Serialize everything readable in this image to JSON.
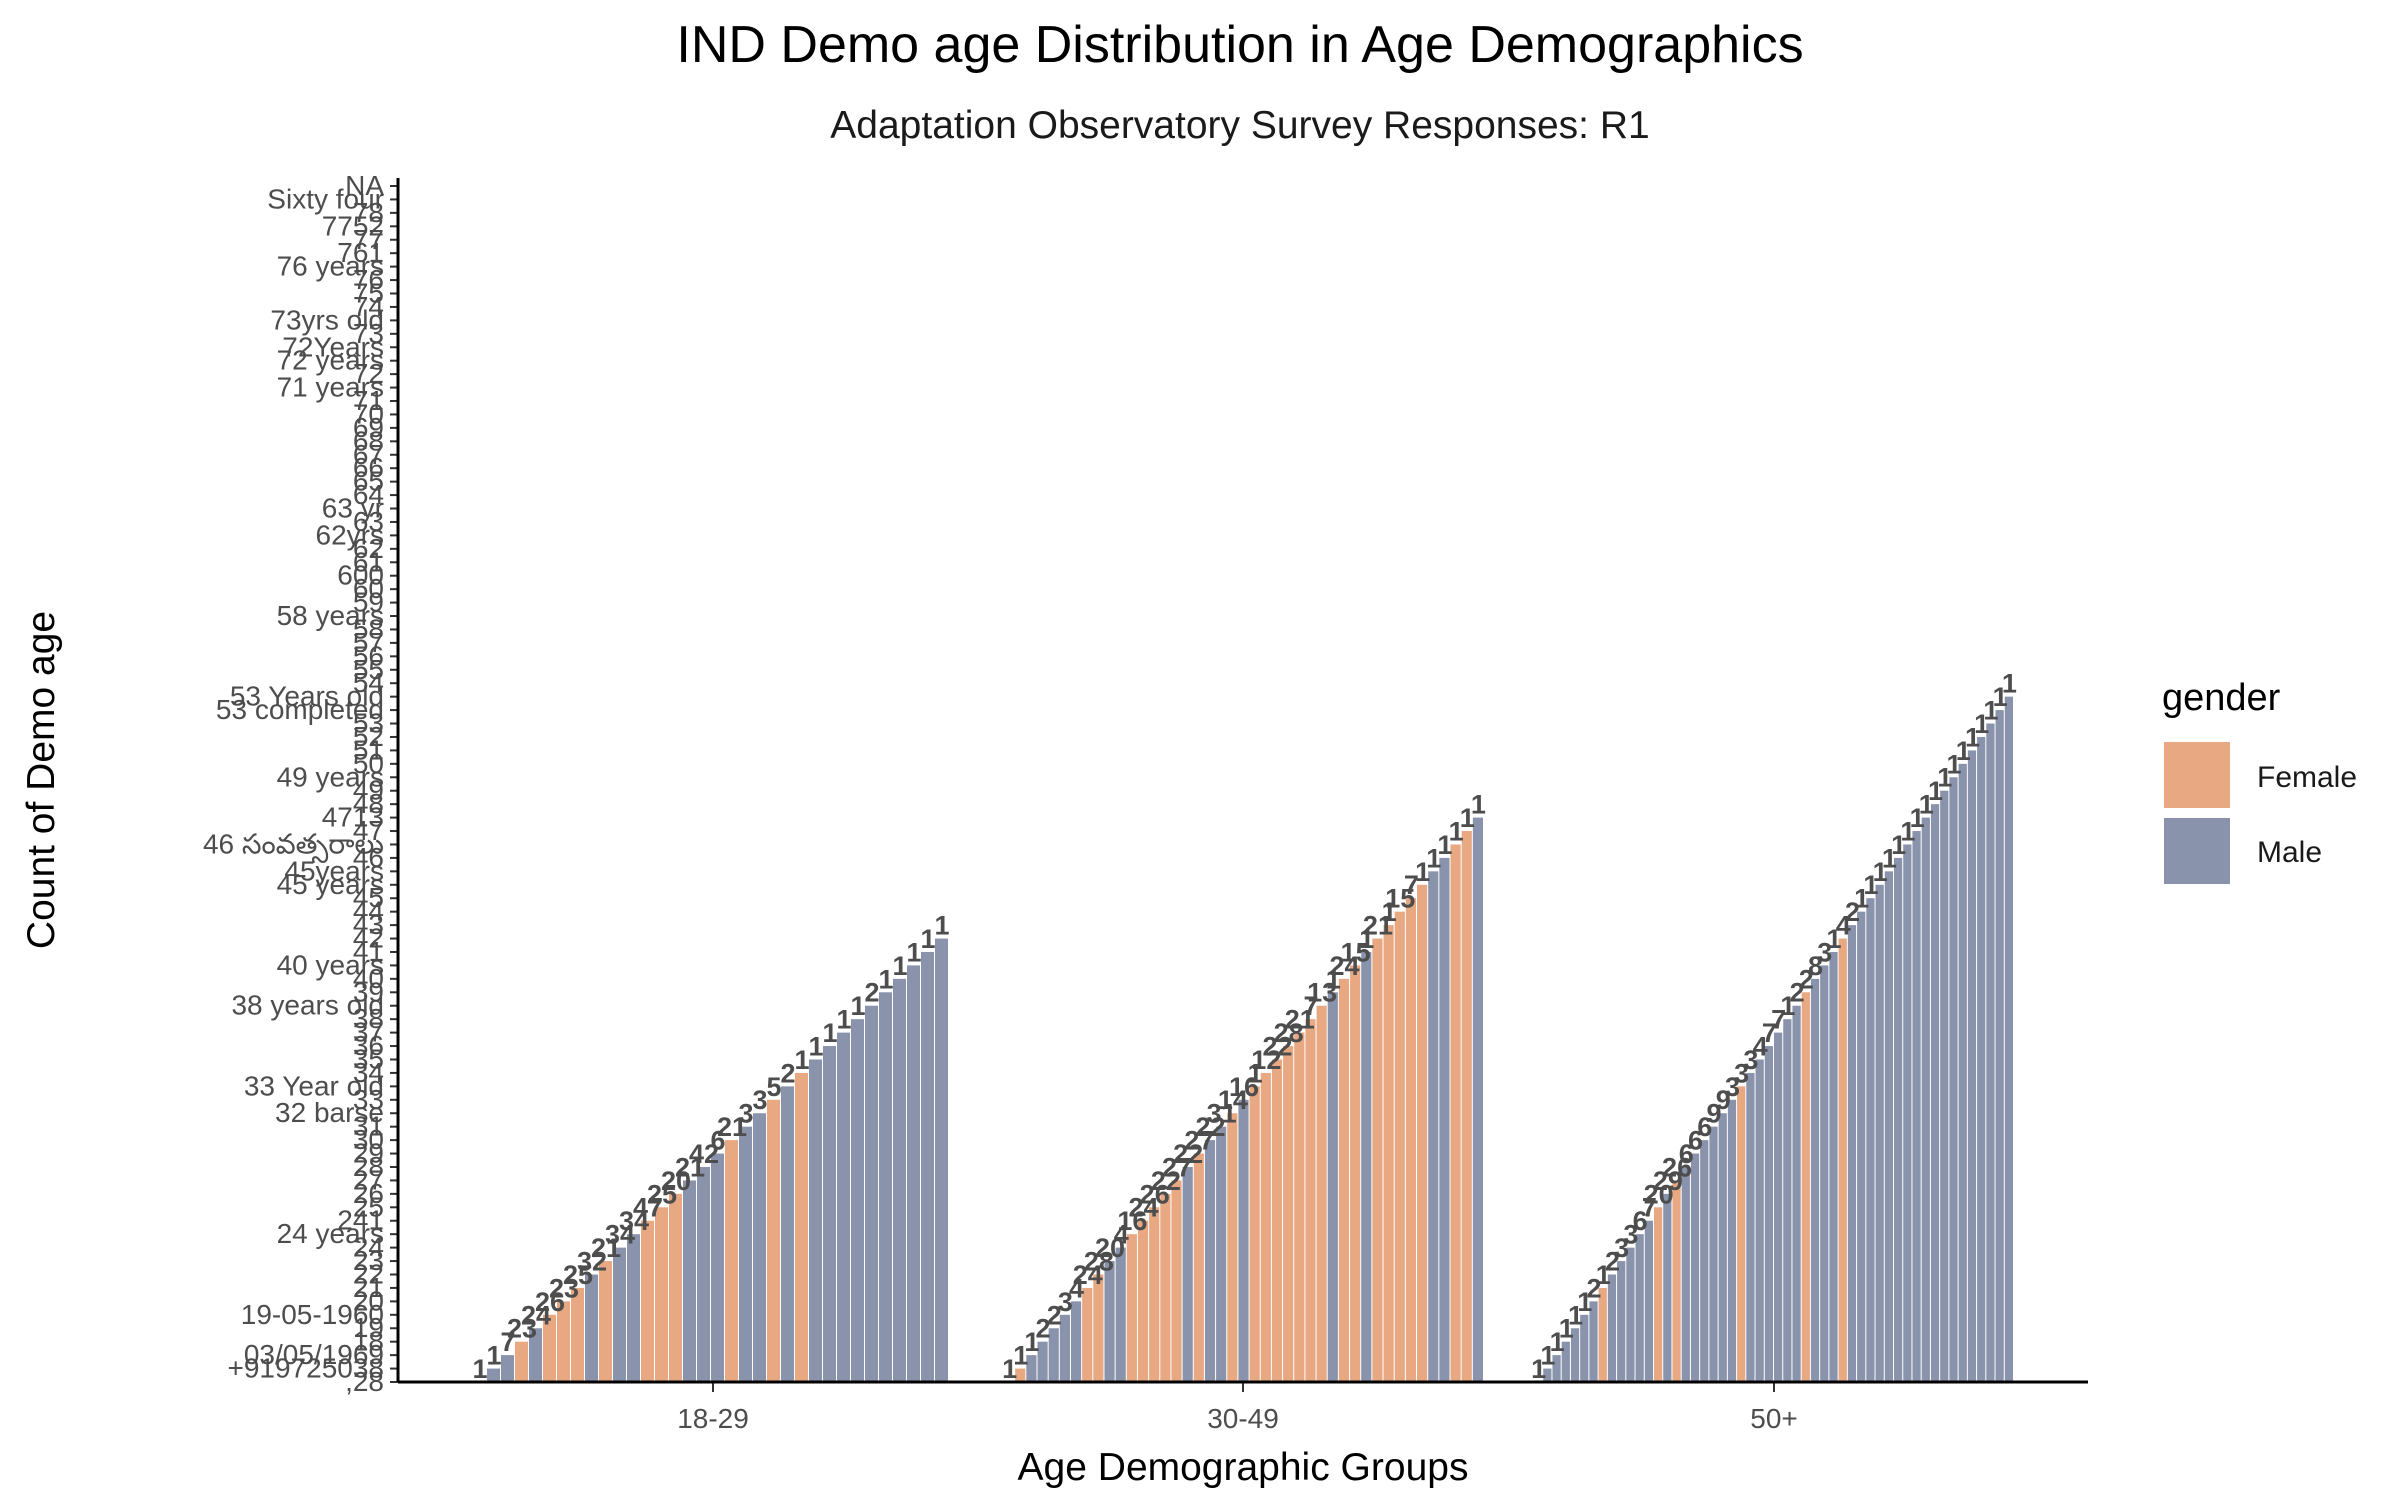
{
  "chart_data": {
    "type": "bar",
    "title": "IND Demo age Distribution in Age Demographics",
    "subtitle": "Adaptation Observatory Survey Responses: R1",
    "xlabel": "Age Demographic Groups",
    "ylabel": "Count of Demo age",
    "legend": {
      "title": "gender",
      "position": "right",
      "entries": [
        {
          "name": "Female",
          "color": "#E8A882"
        },
        {
          "name": "Male",
          "color": "#8A93AC"
        }
      ]
    },
    "y_tick_labels": [
      ",28",
      "+919725038",
      "03/05/1969",
      "18",
      "19",
      "19-05-1960",
      "20",
      "21",
      "22",
      "23",
      "24",
      "24 years",
      "241",
      "25",
      "26",
      "27",
      "28",
      "29",
      "30",
      "31",
      "32 barse",
      "33",
      "33 Year old",
      "34",
      "35",
      "36",
      "37",
      "38",
      "38 years old",
      "39",
      "40",
      "40 years",
      "41",
      "42",
      "43",
      "44",
      "45",
      "45 years",
      "45years",
      "46",
      "46 సంవత్సరాలు",
      "47",
      "4713",
      "48",
      "49",
      "49 years",
      "50",
      "51",
      "52",
      "53",
      "53 completed",
      "53 Years old",
      "54",
      "55",
      "56",
      "57",
      "58",
      "58 years",
      "59",
      "60",
      "600",
      "61",
      "62",
      "62yrs",
      "63",
      "63 yr",
      "64",
      "65",
      "66",
      "67",
      "68",
      "69",
      "70",
      "71",
      "71 years",
      "72",
      "72 years",
      "72Years",
      "73",
      "73yrs old",
      "74",
      "75",
      "76",
      "76 years",
      "761",
      "77",
      "7752",
      "78",
      "Sixty four",
      "NA"
    ],
    "groups": [
      {
        "name": "18-29",
        "bars": [
          {
            "y": 1,
            "g": "M",
            "n": "1"
          },
          {
            "y": 2,
            "g": "M",
            "n": "1"
          },
          {
            "y": 3,
            "g": "M",
            "n": "7"
          },
          {
            "y": 4,
            "g": "F",
            "n": "23"
          },
          {
            "y": 5,
            "g": "M",
            "n": "24"
          },
          {
            "y": 6,
            "g": "F",
            "n": "26"
          },
          {
            "y": 7,
            "g": "F",
            "n": "23"
          },
          {
            "y": 8,
            "g": "F",
            "n": "25"
          },
          {
            "y": 9,
            "g": "M",
            "n": "32"
          },
          {
            "y": 10,
            "g": "F",
            "n": "21"
          },
          {
            "y": 11,
            "g": "M",
            "n": "34"
          },
          {
            "y": 12,
            "g": "M",
            "n": "34"
          },
          {
            "y": 13,
            "g": "F",
            "n": "47"
          },
          {
            "y": 14,
            "g": "F",
            "n": "25"
          },
          {
            "y": 15,
            "g": "F",
            "n": "20"
          },
          {
            "y": 16,
            "g": "M",
            "n": "21"
          },
          {
            "y": 17,
            "g": "M",
            "n": "42"
          },
          {
            "y": 18,
            "g": "M",
            "n": "6"
          },
          {
            "y": 19,
            "g": "F",
            "n": "21"
          },
          {
            "y": 20,
            "g": "M",
            "n": "3"
          },
          {
            "y": 21,
            "g": "M",
            "n": "3"
          },
          {
            "y": 22,
            "g": "F",
            "n": "5"
          },
          {
            "y": 23,
            "g": "M",
            "n": "2"
          },
          {
            "y": 24,
            "g": "F",
            "n": "1"
          },
          {
            "y": 25,
            "g": "M",
            "n": "1"
          },
          {
            "y": 26,
            "g": "M",
            "n": "1"
          },
          {
            "y": 27,
            "g": "M",
            "n": "1"
          },
          {
            "y": 28,
            "g": "M",
            "n": "1"
          },
          {
            "y": 29,
            "g": "M",
            "n": "2"
          },
          {
            "y": 30,
            "g": "M",
            "n": "1"
          },
          {
            "y": 31,
            "g": "M",
            "n": "1"
          },
          {
            "y": 32,
            "g": "M",
            "n": "1"
          },
          {
            "y": 33,
            "g": "M",
            "n": "1"
          },
          {
            "y": 34,
            "g": "M",
            "n": "1"
          }
        ]
      },
      {
        "name": "30-49",
        "bars": [
          {
            "y": 1,
            "g": "M",
            "n": "1"
          },
          {
            "y": 2,
            "g": "F",
            "n": "1"
          },
          {
            "y": 3,
            "g": "M",
            "n": "1"
          },
          {
            "y": 4,
            "g": "M",
            "n": "2"
          },
          {
            "y": 5,
            "g": "M",
            "n": "2"
          },
          {
            "y": 6,
            "g": "M",
            "n": "3"
          },
          {
            "y": 7,
            "g": "M",
            "n": "4"
          },
          {
            "y": 8,
            "g": "F",
            "n": "24"
          },
          {
            "y": 9,
            "g": "F",
            "n": "28"
          },
          {
            "y": 10,
            "g": "M",
            "n": "20"
          },
          {
            "y": 11,
            "g": "M",
            "n": "4"
          },
          {
            "y": 12,
            "g": "F",
            "n": "16"
          },
          {
            "y": 13,
            "g": "F",
            "n": "24"
          },
          {
            "y": 14,
            "g": "F",
            "n": "26"
          },
          {
            "y": 15,
            "g": "F",
            "n": "22"
          },
          {
            "y": 16,
            "g": "F",
            "n": "27"
          },
          {
            "y": 17,
            "g": "M",
            "n": "22"
          },
          {
            "y": 18,
            "g": "F",
            "n": "27"
          },
          {
            "y": 19,
            "g": "M",
            "n": "22"
          },
          {
            "y": 20,
            "g": "M",
            "n": "31"
          },
          {
            "y": 21,
            "g": "F",
            "n": "14"
          },
          {
            "y": 22,
            "g": "M",
            "n": "16"
          },
          {
            "y": 23,
            "g": "F",
            "n": "1"
          },
          {
            "y": 24,
            "g": "F",
            "n": "12"
          },
          {
            "y": 25,
            "g": "F",
            "n": "22"
          },
          {
            "y": 26,
            "g": "F",
            "n": "28"
          },
          {
            "y": 27,
            "g": "F",
            "n": "21"
          },
          {
            "y": 28,
            "g": "F",
            "n": "7"
          },
          {
            "y": 29,
            "g": "F",
            "n": "13"
          },
          {
            "y": 30,
            "g": "M",
            "n": "1"
          },
          {
            "y": 31,
            "g": "F",
            "n": "24"
          },
          {
            "y": 32,
            "g": "F",
            "n": "15"
          },
          {
            "y": 33,
            "g": "M",
            "n": "1"
          },
          {
            "y": 34,
            "g": "F",
            "n": "21"
          },
          {
            "y": 35,
            "g": "F",
            "n": "1"
          },
          {
            "y": 36,
            "g": "F",
            "n": "15"
          },
          {
            "y": 37,
            "g": "F",
            "n": "7"
          },
          {
            "y": 38,
            "g": "F",
            "n": "1"
          },
          {
            "y": 39,
            "g": "M",
            "n": "1"
          },
          {
            "y": 40,
            "g": "M",
            "n": "1"
          },
          {
            "y": 41,
            "g": "F",
            "n": "1"
          },
          {
            "y": 42,
            "g": "F",
            "n": "1"
          },
          {
            "y": 43,
            "g": "M",
            "n": "1"
          }
        ]
      },
      {
        "name": "50+",
        "bars": [
          {
            "y": 1,
            "g": "M",
            "n": "1"
          },
          {
            "y": 2,
            "g": "M",
            "n": "1"
          },
          {
            "y": 3,
            "g": "M",
            "n": "1"
          },
          {
            "y": 4,
            "g": "M",
            "n": "1"
          },
          {
            "y": 5,
            "g": "M",
            "n": "1"
          },
          {
            "y": 6,
            "g": "M",
            "n": "1"
          },
          {
            "y": 7,
            "g": "M",
            "n": "2"
          },
          {
            "y": 8,
            "g": "F",
            "n": "1"
          },
          {
            "y": 9,
            "g": "M",
            "n": "2"
          },
          {
            "y": 10,
            "g": "M",
            "n": "3"
          },
          {
            "y": 11,
            "g": "M",
            "n": "3"
          },
          {
            "y": 12,
            "g": "M",
            "n": "6"
          },
          {
            "y": 13,
            "g": "M",
            "n": "7"
          },
          {
            "y": 14,
            "g": "F",
            "n": "20"
          },
          {
            "y": 15,
            "g": "M",
            "n": "29"
          },
          {
            "y": 16,
            "g": "F",
            "n": "26"
          },
          {
            "y": 17,
            "g": "M",
            "n": "6"
          },
          {
            "y": 18,
            "g": "M",
            "n": "6"
          },
          {
            "y": 19,
            "g": "M",
            "n": "6"
          },
          {
            "y": 20,
            "g": "M",
            "n": "9"
          },
          {
            "y": 21,
            "g": "M",
            "n": "9"
          },
          {
            "y": 22,
            "g": "M",
            "n": "3"
          },
          {
            "y": 23,
            "g": "F",
            "n": "3"
          },
          {
            "y": 24,
            "g": "M",
            "n": "3"
          },
          {
            "y": 25,
            "g": "M",
            "n": "4"
          },
          {
            "y": 26,
            "g": "M",
            "n": "7"
          },
          {
            "y": 27,
            "g": "M",
            "n": "7"
          },
          {
            "y": 28,
            "g": "M",
            "n": "1"
          },
          {
            "y": 29,
            "g": "M",
            "n": "2"
          },
          {
            "y": 30,
            "g": "F",
            "n": "2"
          },
          {
            "y": 31,
            "g": "M",
            "n": "8"
          },
          {
            "y": 32,
            "g": "M",
            "n": "3"
          },
          {
            "y": 33,
            "g": "M",
            "n": "1"
          },
          {
            "y": 34,
            "g": "F",
            "n": "4"
          },
          {
            "y": 35,
            "g": "M",
            "n": "2"
          },
          {
            "y": 36,
            "g": "M",
            "n": "1"
          },
          {
            "y": 37,
            "g": "M",
            "n": "1"
          },
          {
            "y": 38,
            "g": "M",
            "n": "1"
          },
          {
            "y": 39,
            "g": "M",
            "n": "1"
          },
          {
            "y": 40,
            "g": "M",
            "n": "1"
          },
          {
            "y": 41,
            "g": "M",
            "n": "1"
          },
          {
            "y": 42,
            "g": "M",
            "n": "1"
          },
          {
            "y": 43,
            "g": "M",
            "n": "1"
          },
          {
            "y": 44,
            "g": "M",
            "n": "1"
          },
          {
            "y": 45,
            "g": "M",
            "n": "1"
          },
          {
            "y": 46,
            "g": "M",
            "n": "1"
          },
          {
            "y": 47,
            "g": "M",
            "n": "1"
          },
          {
            "y": 48,
            "g": "M",
            "n": "1"
          },
          {
            "y": 49,
            "g": "M",
            "n": "1"
          },
          {
            "y": 50,
            "g": "M",
            "n": "1"
          },
          {
            "y": 51,
            "g": "M",
            "n": "1"
          },
          {
            "y": 52,
            "g": "M",
            "n": "1"
          }
        ]
      }
    ],
    "grid": false
  }
}
